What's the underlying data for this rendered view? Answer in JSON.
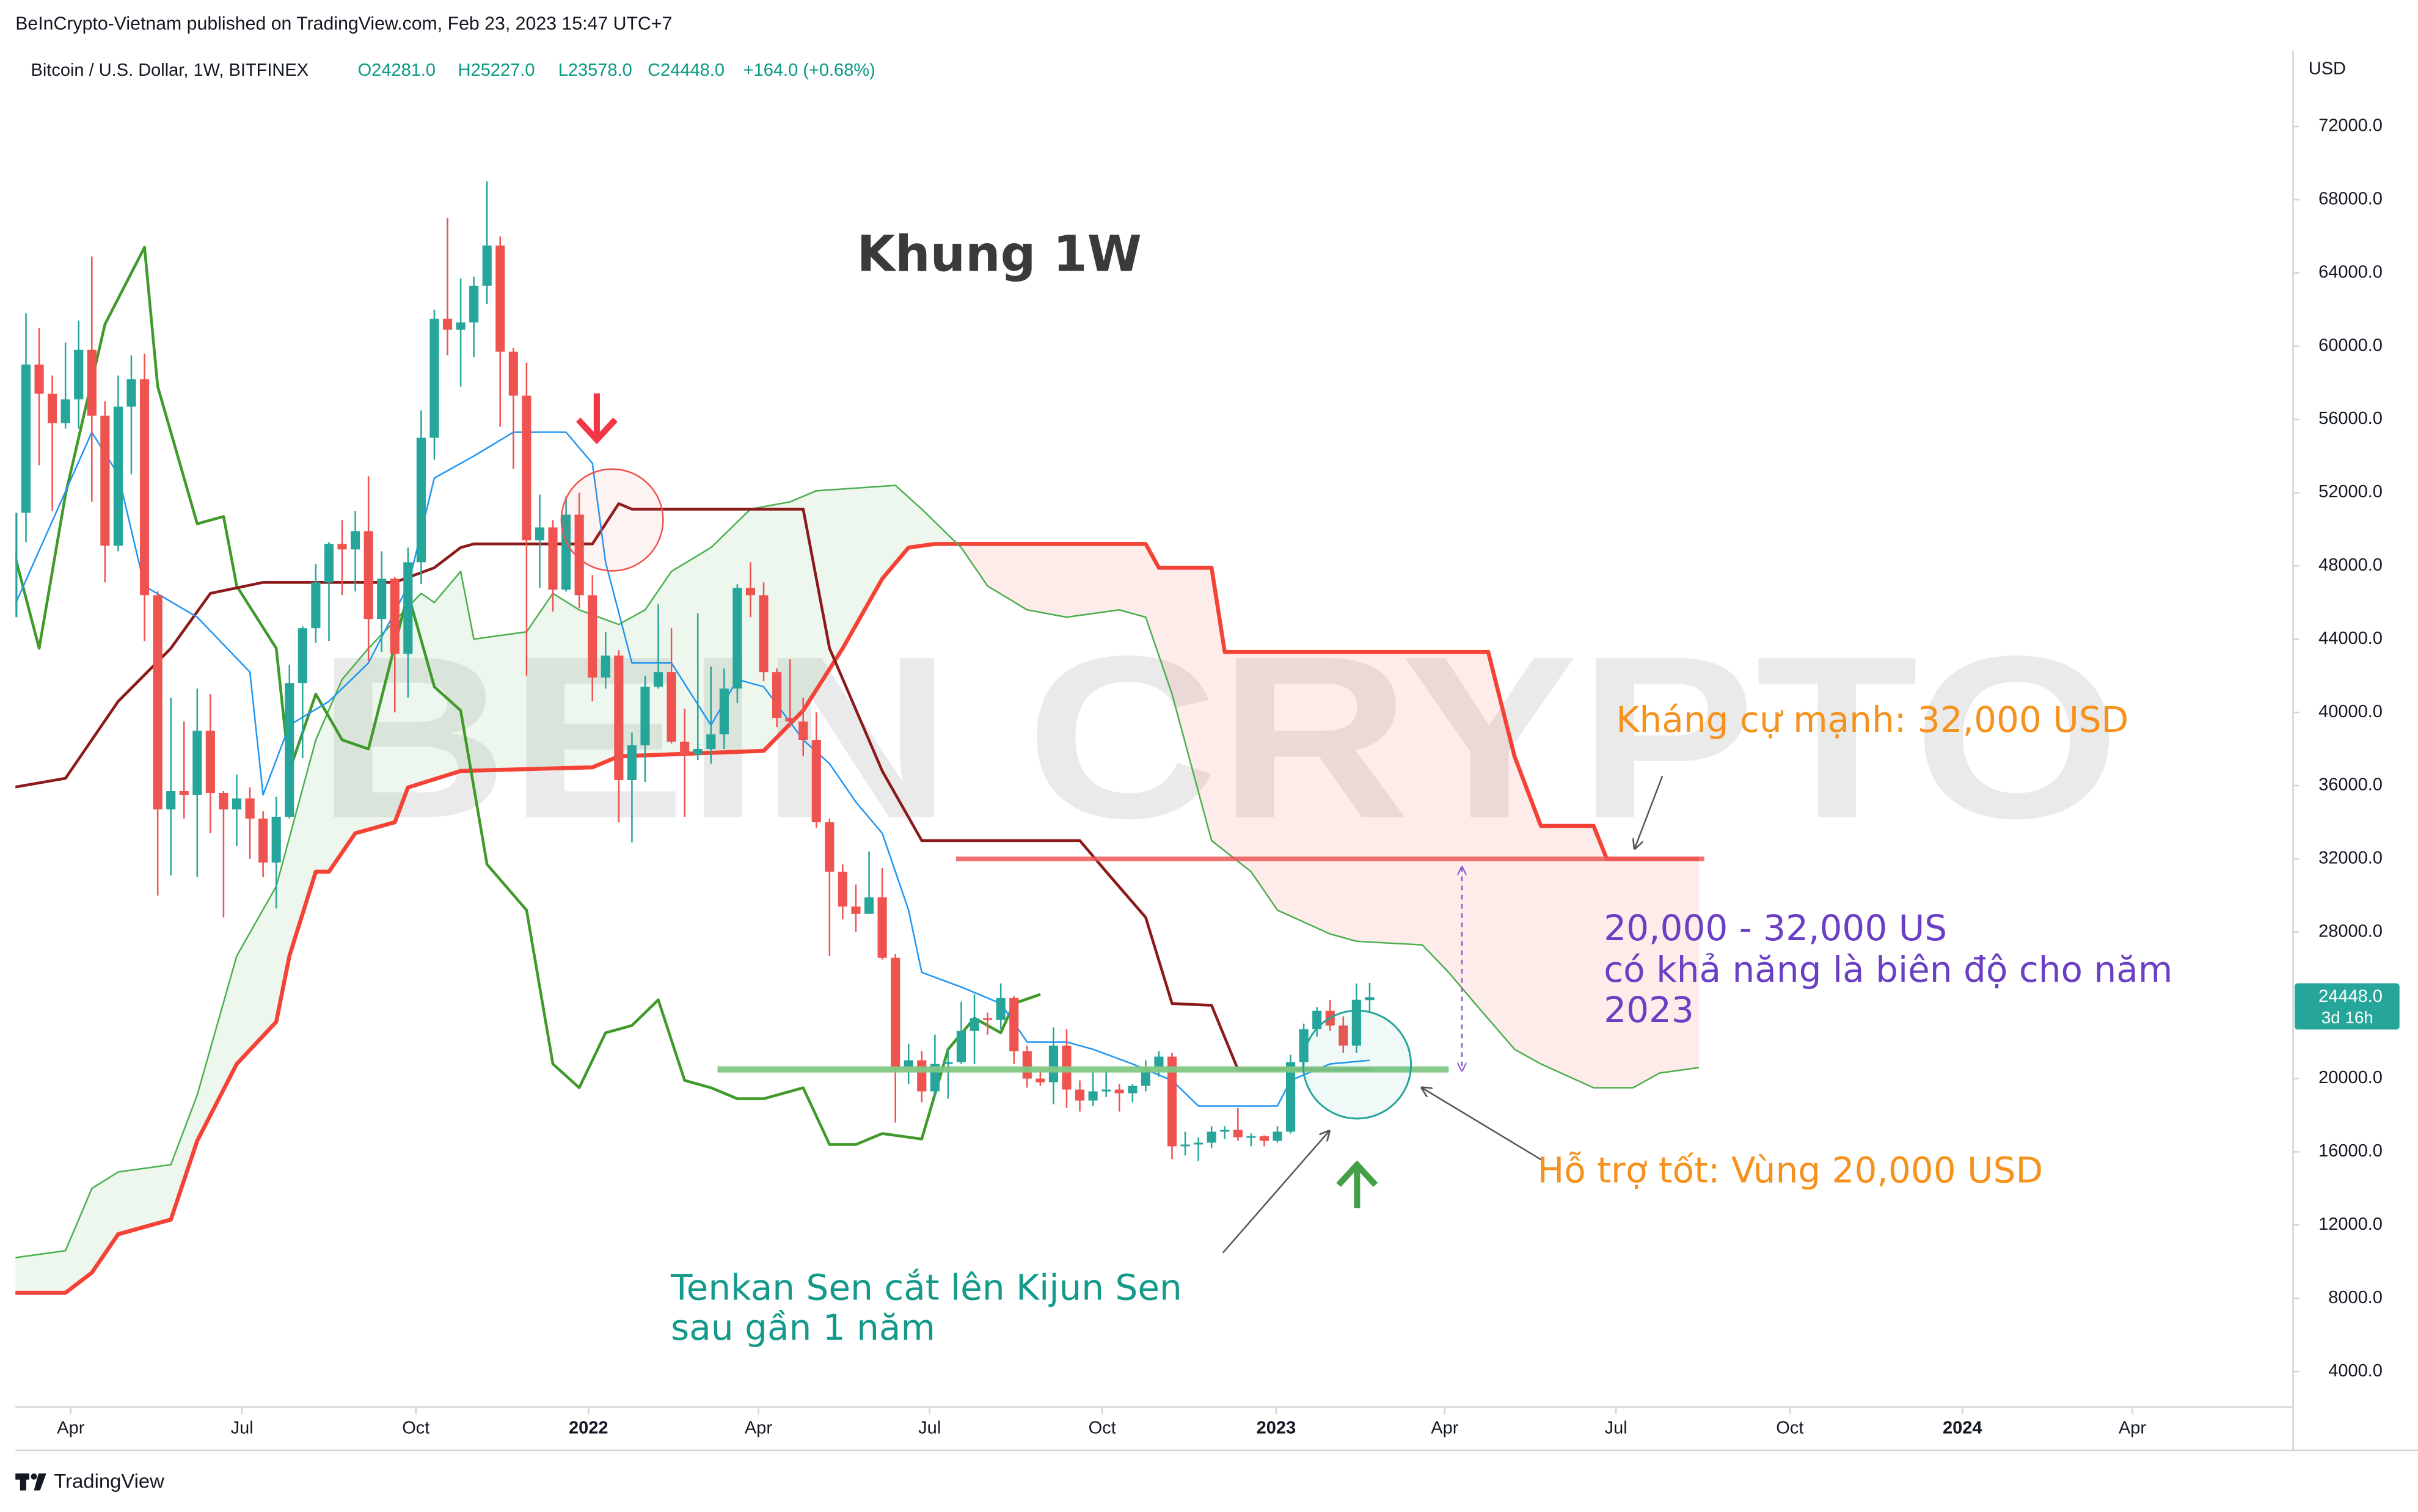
{
  "chart_data": {
    "type": "candlestick",
    "header": "BeInCrypto-Vietnam published on TradingView.com, Feb 23, 2023 15:47 UTC+7",
    "symbol": "Bitcoin / U.S. Dollar, 1W, BITFINEX",
    "legend": [
      "O24281.0",
      "H25227.0",
      "L23578.0",
      "C24448.0",
      "+164.0 (+0.68%)"
    ],
    "legend_color": "#089981",
    "currency": "USD",
    "title": "Khung 1W",
    "watermark": "BEIN CRYPTO",
    "footer": "TradingView",
    "xlim": [
      0.2,
      173.1
    ],
    "xticks": [
      {
        "value": 4.4,
        "label": "Apr"
      },
      {
        "value": 17.4,
        "label": "Jul"
      },
      {
        "value": 30.6,
        "label": "Oct"
      },
      {
        "value": 43.7,
        "label": "2022"
      },
      {
        "value": 56.6,
        "label": "Apr"
      },
      {
        "value": 69.6,
        "label": "Jul"
      },
      {
        "value": 82.7,
        "label": "Oct"
      },
      {
        "value": 95.9,
        "label": "2023"
      },
      {
        "value": 108.7,
        "label": "Apr"
      },
      {
        "value": 121.7,
        "label": "Jul"
      },
      {
        "value": 134.9,
        "label": "Oct"
      },
      {
        "value": 148,
        "label": "2024"
      },
      {
        "value": 160.9,
        "label": "Apr"
      }
    ],
    "ylim": [
      2000,
      76000
    ],
    "yticks": [
      {
        "value": 4000,
        "label": "4000.0"
      },
      {
        "value": 8000,
        "label": "8000.0"
      },
      {
        "value": 12000,
        "label": "12000.0"
      },
      {
        "value": 16000,
        "label": "16000.0"
      },
      {
        "value": 20000,
        "label": "20000.0"
      },
      {
        "value": 24000,
        "label": "24000.0"
      },
      {
        "value": 28000,
        "label": "28000.0"
      },
      {
        "value": 32000,
        "label": "32000.0"
      },
      {
        "value": 36000,
        "label": "36000.0"
      },
      {
        "value": 40000,
        "label": "40000.0"
      },
      {
        "value": 44000,
        "label": "44000.0"
      },
      {
        "value": 48000,
        "label": "48000.0"
      },
      {
        "value": 52000,
        "label": "52000.0"
      },
      {
        "value": 56000,
        "label": "56000.0"
      },
      {
        "value": 60000,
        "label": "60000.0"
      },
      {
        "value": 64000,
        "label": "64000.0"
      },
      {
        "value": 68000,
        "label": "68000.0"
      },
      {
        "value": 72000,
        "label": "72000.0"
      }
    ],
    "grid": false,
    "up_color": "#26a69a",
    "down_color": "#ef5350",
    "open": [
      45200,
      50900,
      59000,
      57400,
      55800,
      57100,
      59800,
      56200,
      49100,
      56700,
      58200,
      46400,
      34700,
      35700,
      35500,
      39000,
      35600,
      34700,
      35300,
      34200,
      31800,
      34300,
      41600,
      44600,
      47100,
      49200,
      48900,
      49900,
      45100,
      47300,
      43200,
      48200,
      55000,
      61500,
      60900,
      61300,
      63300,
      65500,
      59700,
      57300,
      49400,
      50100,
      46700,
      50800,
      46400,
      41900,
      43100,
      36300,
      38200,
      41400,
      42200,
      38400,
      37700,
      38000,
      38800,
      41300,
      46800,
      46400,
      42200,
      39700,
      39500,
      38500,
      34000,
      31300,
      29400,
      29000,
      29900,
      26600,
      20600,
      21000,
      19300,
      20800,
      20900,
      22600,
      23300,
      23200,
      24400,
      21500,
      20000,
      19800,
      21800,
      19400,
      18800,
      19300,
      19400,
      19200,
      19600,
      20600,
      21200,
      16300,
      16400,
      16500,
      17100,
      17200,
      16800,
      16850,
      16600,
      17100,
      20900,
      22700,
      23700,
      22900,
      21800,
      24281
    ],
    "high": [
      52600,
      61800,
      61000,
      58400,
      60200,
      61400,
      64900,
      57000,
      58400,
      59500,
      59600,
      46600,
      40800,
      39500,
      41300,
      41000,
      35700,
      36600,
      35900,
      34600,
      35400,
      42600,
      44700,
      48100,
      49300,
      50500,
      51000,
      52900,
      48800,
      47400,
      49000,
      56500,
      62000,
      67000,
      63700,
      63800,
      69000,
      66000,
      59900,
      59100,
      51900,
      50500,
      51800,
      52000,
      47500,
      44400,
      43400,
      38900,
      42000,
      45900,
      44600,
      40200,
      45400,
      42500,
      42400,
      47000,
      48200,
      47100,
      42400,
      42900,
      40800,
      40000,
      34200,
      31700,
      30600,
      32400,
      31500,
      26800,
      21900,
      21500,
      22400,
      21600,
      24200,
      24600,
      23600,
      25200,
      24500,
      21800,
      20600,
      22800,
      22700,
      19900,
      20400,
      20500,
      19700,
      19700,
      21000,
      21500,
      21400,
      17100,
      16800,
      17400,
      17400,
      18400,
      17000,
      16900,
      17400,
      21300,
      23000,
      23900,
      24300,
      23400,
      25200,
      25227
    ],
    "low": [
      44900,
      49300,
      53500,
      51000,
      55500,
      55500,
      51500,
      47100,
      48800,
      53000,
      43900,
      30000,
      31100,
      34200,
      31000,
      33400,
      28800,
      32700,
      32000,
      31000,
      29300,
      34200,
      37500,
      43800,
      43900,
      46400,
      46600,
      42800,
      43300,
      40000,
      40800,
      47000,
      53800,
      59500,
      57800,
      59400,
      62300,
      55600,
      53300,
      42000,
      46800,
      45500,
      46600,
      45700,
      40600,
      41300,
      34000,
      32900,
      36200,
      41300,
      38300,
      34300,
      37400,
      37200,
      38000,
      40500,
      45200,
      41700,
      39200,
      39200,
      37600,
      33700,
      26700,
      28700,
      28000,
      29000,
      26500,
      17600,
      19700,
      18700,
      19000,
      18900,
      20800,
      20800,
      22400,
      22700,
      20800,
      19500,
      19600,
      18600,
      18400,
      18200,
      18500,
      19000,
      18200,
      18700,
      19300,
      20100,
      15600,
      15800,
      15500,
      16200,
      16700,
      16600,
      16300,
      16300,
      16500,
      17000,
      20600,
      22300,
      22600,
      21400,
      21400,
      23578
    ],
    "close": [
      50900,
      59000,
      57400,
      55800,
      57100,
      59800,
      56200,
      49100,
      56700,
      58200,
      46400,
      34700,
      35700,
      35500,
      39000,
      35600,
      34700,
      35300,
      34200,
      31800,
      34300,
      41600,
      44600,
      47100,
      49200,
      48900,
      49900,
      45100,
      47300,
      43200,
      48200,
      55000,
      61500,
      60900,
      61300,
      63300,
      65500,
      59700,
      57300,
      49400,
      50100,
      46700,
      50800,
      46400,
      41900,
      43100,
      36300,
      38200,
      41400,
      42200,
      38400,
      37700,
      38000,
      38800,
      41300,
      46800,
      46400,
      42200,
      39700,
      39500,
      38500,
      34000,
      31300,
      29400,
      29000,
      29900,
      26600,
      20600,
      21000,
      19300,
      20800,
      20900,
      22600,
      23300,
      23200,
      24400,
      21500,
      20000,
      19800,
      21800,
      19400,
      18800,
      19300,
      19400,
      19200,
      19600,
      20600,
      21200,
      16300,
      16400,
      16500,
      17100,
      17200,
      16800,
      16850,
      16600,
      17100,
      20900,
      22700,
      23700,
      22900,
      21800,
      24300,
      24448
    ],
    "tenkan": {
      "color": "#2196f3",
      "x": [
        0,
        6,
        8,
        10,
        14,
        18,
        19,
        21,
        24,
        27,
        30,
        32,
        35,
        38,
        42,
        44,
        45,
        47,
        50,
        53,
        55,
        57,
        60,
        62,
        64,
        66,
        68,
        69,
        72,
        75,
        77,
        80,
        82,
        85,
        88,
        90,
        96,
        97,
        100,
        103
      ],
      "values": [
        45600,
        55300,
        53000,
        46900,
        45200,
        42200,
        35500,
        39300,
        40600,
        42700,
        46900,
        52800,
        54000,
        55300,
        55300,
        53600,
        48200,
        42700,
        42700,
        39300,
        41800,
        41400,
        38500,
        37200,
        35100,
        33400,
        29200,
        25800,
        25000,
        24100,
        22000,
        22000,
        21600,
        20800,
        19900,
        18500,
        18500,
        19900,
        20800,
        21000
      ]
    },
    "kijun": {
      "color": "#8b1a1a",
      "x": [
        0,
        4,
        6,
        8,
        12,
        15,
        19,
        29,
        32,
        34,
        35,
        44,
        46,
        47,
        60,
        62,
        66,
        69,
        81,
        83,
        86,
        88,
        91,
        93,
        103
      ],
      "values": [
        35900,
        36400,
        38500,
        40600,
        43500,
        46500,
        47100,
        47100,
        47900,
        49000,
        49200,
        49200,
        51400,
        51100,
        51100,
        43500,
        36800,
        33000,
        33000,
        31300,
        28800,
        24100,
        24000,
        20500,
        20500
      ]
    },
    "span_a": {
      "color": "#4caf50",
      "x": [
        0,
        4,
        6,
        8,
        12,
        14,
        17,
        20,
        23,
        25,
        27,
        31,
        32,
        34,
        35,
        39,
        41,
        43,
        46,
        48,
        50,
        53,
        56,
        59,
        61,
        67,
        69,
        72,
        74,
        77,
        80,
        84,
        86,
        88,
        91,
        94,
        96,
        100,
        102,
        107,
        109,
        111,
        114,
        116,
        120,
        123,
        125,
        128
      ],
      "values": [
        10200,
        10600,
        14000,
        14900,
        15300,
        19100,
        26700,
        30500,
        38500,
        41800,
        43500,
        46500,
        46000,
        47700,
        44000,
        44400,
        46500,
        45600,
        44800,
        45600,
        47700,
        49000,
        51100,
        51500,
        52100,
        52400,
        51100,
        49000,
        46900,
        45600,
        45200,
        45600,
        45200,
        41000,
        33000,
        31300,
        29200,
        27900,
        27500,
        27300,
        25800,
        24100,
        21600,
        20800,
        19500,
        19500,
        20300,
        20600
      ]
    },
    "span_b": {
      "color": "#f44336",
      "x": [
        0,
        4,
        6,
        8,
        12,
        14,
        17,
        20,
        21,
        23,
        24,
        26,
        29,
        30,
        34,
        44,
        46,
        57,
        60,
        63,
        66,
        68,
        70,
        86,
        87,
        91,
        92,
        112,
        114,
        116,
        120,
        121,
        128
      ],
      "values": [
        8300,
        8300,
        9400,
        11500,
        12300,
        16600,
        20800,
        23100,
        26700,
        31300,
        31300,
        33400,
        34000,
        35900,
        36800,
        37000,
        37600,
        37900,
        40100,
        43500,
        47300,
        49000,
        49200,
        49200,
        47900,
        47900,
        43300,
        43300,
        37600,
        33800,
        33800,
        32000,
        32000
      ]
    },
    "lagging": {
      "color": "#3f9a2a",
      "x": [
        0,
        2,
        4,
        7,
        10,
        11,
        14,
        16,
        17,
        20,
        21,
        23,
        25,
        27,
        30,
        32,
        34,
        36,
        39,
        41,
        43,
        45,
        47,
        49,
        51,
        53,
        55,
        57,
        60,
        62,
        64,
        66,
        69,
        71,
        73,
        75,
        76,
        78
      ],
      "values": [
        49000,
        43500,
        51900,
        61200,
        65400,
        57800,
        50300,
        50700,
        46900,
        43500,
        36800,
        41000,
        38500,
        38000,
        46500,
        41400,
        40100,
        31700,
        29200,
        20800,
        19500,
        22500,
        22900,
        24300,
        19900,
        19500,
        18900,
        18900,
        19500,
        16400,
        16400,
        17000,
        16700,
        21600,
        23300,
        22500,
        24100,
        24600
      ]
    },
    "cloud_colors": {
      "bull": "rgba(76,175,80,0.10)",
      "bear": "rgba(244,67,54,0.10)"
    },
    "price_tag": {
      "value": 24448,
      "label": "24448.0",
      "countdown": "3d 16h",
      "color": "#26a69a"
    },
    "resistance": {
      "value": 32000,
      "x": [
        71.6,
        128.4
      ],
      "color": "rgba(236,88,88,0.85)"
    },
    "support": {
      "value": 20500,
      "x": [
        53.5,
        109
      ],
      "color": "rgba(129,199,132,0.95)"
    },
    "annotations": {
      "resistance_text": "Kháng cự mạnh: 32,000 USD",
      "range_text": [
        "20,000 - 32,000 US",
        "có khả năng là biên độ cho năm",
        "2023"
      ],
      "support_text": "Hỗ trợ tốt: Vùng 20,000 USD",
      "cross_text": [
        "Tenkan Sen cắt lên Kijun Sen",
        "sau gần 1 năm"
      ]
    }
  }
}
